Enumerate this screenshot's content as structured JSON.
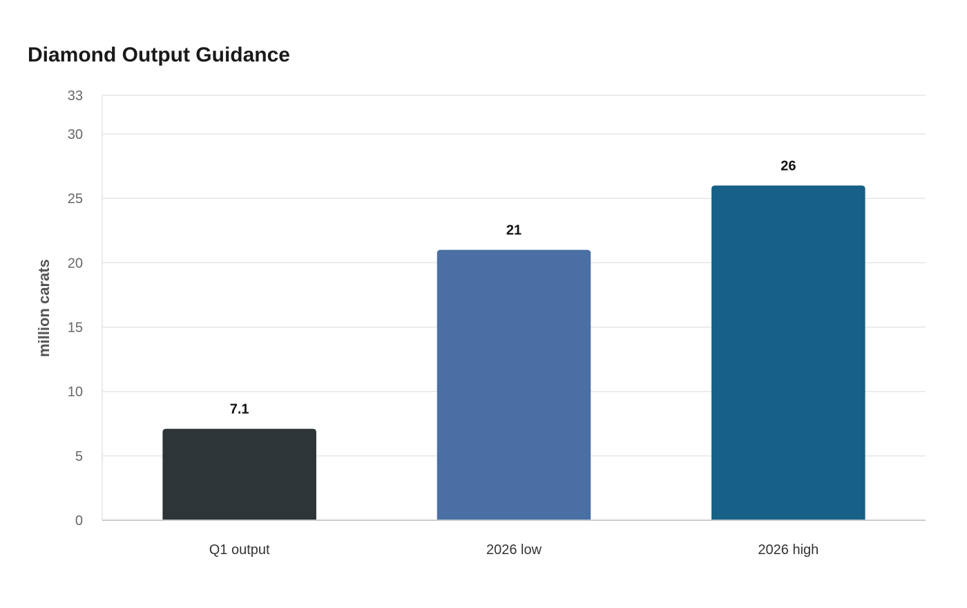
{
  "chart_data": {
    "type": "bar",
    "title": "Diamond Output Guidance",
    "xlabel": "",
    "ylabel": "million carats",
    "categories": [
      "Q1 output",
      "2026 low",
      "2026 high"
    ],
    "values": [
      7.1,
      21,
      26
    ],
    "data_labels": [
      "7.1",
      "21",
      "26"
    ],
    "bar_colors": [
      "#2e3538",
      "#4a6fa5",
      "#176087"
    ],
    "ylim": [
      0,
      33
    ],
    "yticks": [
      0,
      5,
      10,
      15,
      20,
      25,
      30,
      33
    ],
    "grid": true,
    "legend": "none"
  }
}
